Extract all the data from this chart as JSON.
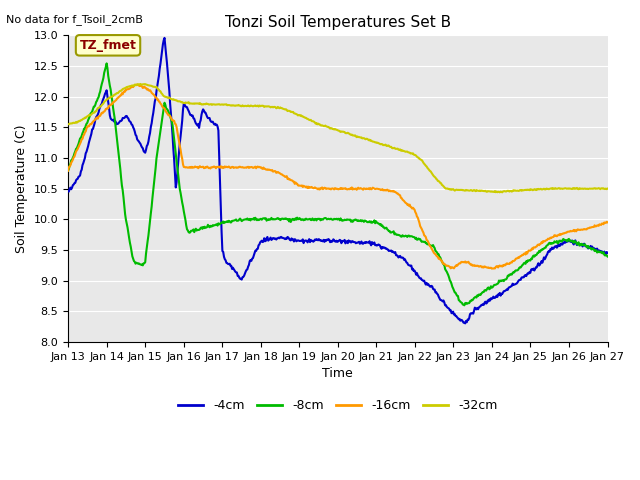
{
  "title": "Tonzi Soil Temperatures Set B",
  "no_data_label": "No data for f_Tsoil_2cmB",
  "annotation_label": "TZ_fmet",
  "xlabel": "Time",
  "ylabel": "Soil Temperature (C)",
  "ylim": [
    8.0,
    13.0
  ],
  "background_color": "#e8e8e8",
  "legend_entries": [
    "-4cm",
    "-8cm",
    "-16cm",
    "-32cm"
  ],
  "line_colors": [
    "#0000cc",
    "#00bb00",
    "#ff9900",
    "#cccc00"
  ],
  "x_tick_labels": [
    "Jan 13",
    "Jan 14",
    "Jan 15",
    "Jan 16",
    "Jan 17",
    "Jan 18",
    "Jan 19",
    "Jan 20",
    "Jan 21",
    "Jan 22",
    "Jan 23",
    "Jan 24",
    "Jan 25",
    "Jan 26",
    "Jan 27"
  ]
}
